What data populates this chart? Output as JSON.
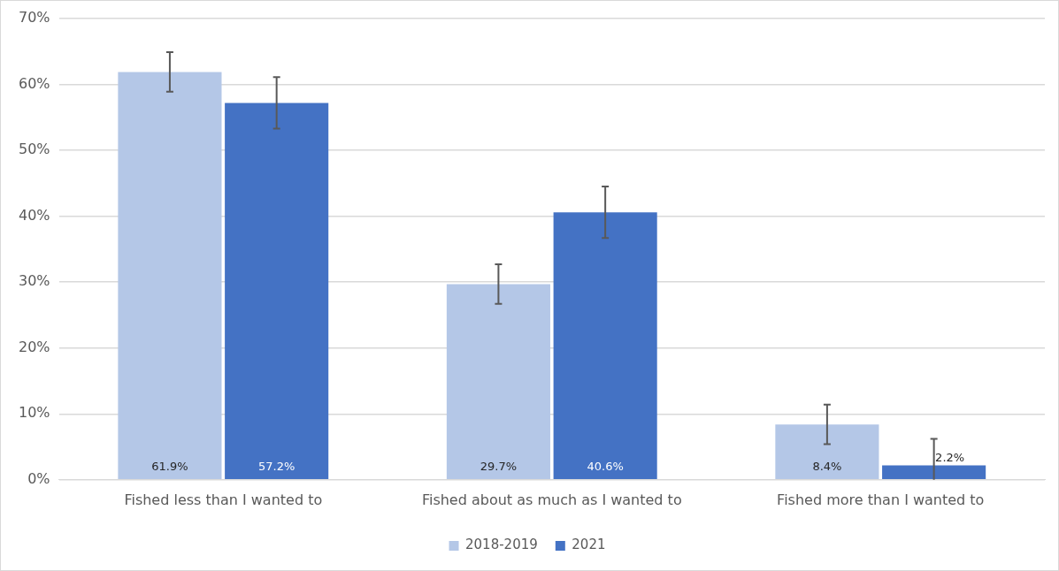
{
  "chart_data": {
    "type": "bar",
    "categories": [
      "Fished less than I wanted to",
      "Fished about as much as I wanted to",
      "Fished more than I wanted to"
    ],
    "series": [
      {
        "name": "2018-2019",
        "color": "#b4c7e7",
        "values": [
          61.9,
          29.7,
          8.4
        ],
        "errors": [
          3,
          3,
          3
        ],
        "value_labels": [
          "61.9%",
          "29.7%",
          "8.4%"
        ]
      },
      {
        "name": "2021",
        "color": "#4472c4",
        "values": [
          57.2,
          40.6,
          2.2
        ],
        "errors": [
          3.9,
          3.9,
          [
            0,
            6.2
          ]
        ],
        "value_labels": [
          "57.2%",
          "40.6%",
          "2.2%"
        ]
      }
    ],
    "ylim": [
      0,
      70
    ],
    "yticks": [
      {
        "value": 0,
        "label": "0%"
      },
      {
        "value": 10,
        "label": "10%"
      },
      {
        "value": 20,
        "label": "20%"
      },
      {
        "value": 30,
        "label": "30%"
      },
      {
        "value": 40,
        "label": "40%"
      },
      {
        "value": 50,
        "label": "50%"
      },
      {
        "value": 60,
        "label": "60%"
      },
      {
        "value": 70,
        "label": "70%"
      }
    ],
    "grid": "y",
    "legend": "bottom"
  }
}
